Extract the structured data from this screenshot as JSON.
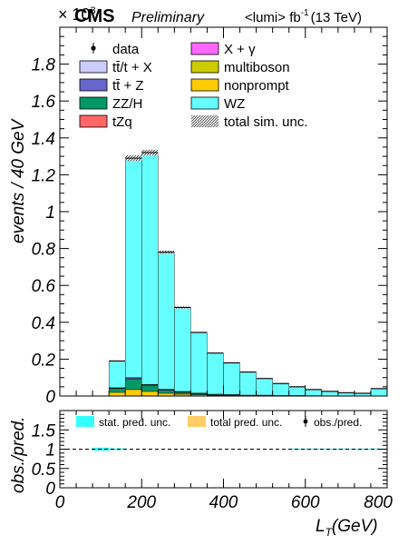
{
  "header": {
    "experiment": "CMS",
    "status": "Preliminary",
    "lumi_prefix": "<lumi> fb",
    "lumi_exp": "-1",
    "energy": "(13 TeV)",
    "multiplier": "× 10",
    "multiplier_exp": "3"
  },
  "chart_data": [
    {
      "type": "bar",
      "stacked": true,
      "xlabel": "L_T (GeV)",
      "xlabel_main": "L",
      "xlabel_sub": "T",
      "xlabel_unit": "(GeV)",
      "ylabel": "events / 40 GeV",
      "xlim": [
        0,
        800
      ],
      "ylim": [
        0,
        2.0
      ],
      "y_scale_factor": 1000,
      "x_ticks": [
        "0",
        "200",
        "400",
        "600",
        "800"
      ],
      "y_ticks": [
        "0",
        "0.2",
        "0.4",
        "0.6",
        "0.8",
        "1",
        "1.2",
        "1.4",
        "1.6",
        "1.8"
      ],
      "bin_edges": [
        120,
        160,
        200,
        240,
        280,
        320,
        360,
        400,
        440,
        480,
        520,
        560,
        600,
        640,
        680,
        720,
        760,
        800
      ],
      "legend": {
        "placement": "top",
        "entries": [
          {
            "label": "data",
            "style": "marker"
          },
          {
            "label": "X + γ",
            "color": "#ff66ff",
            "style": "box"
          },
          {
            "label": "tt̄/t + X",
            "color": "#ccccff",
            "style": "box"
          },
          {
            "label": "multiboson",
            "color": "#cccc00",
            "style": "box"
          },
          {
            "label": "tt̄ + Z",
            "color": "#6666cc",
            "style": "box"
          },
          {
            "label": "nonprompt",
            "color": "#ffcc00",
            "style": "box"
          },
          {
            "label": "ZZ/H",
            "color": "#009966",
            "style": "box"
          },
          {
            "label": "WZ",
            "color": "#66ffff",
            "style": "box"
          },
          {
            "label": "tZq",
            "color": "#ff6666",
            "style": "box"
          },
          {
            "label": "total sim. unc.",
            "color": "#555555",
            "style": "hatch"
          }
        ]
      },
      "series": [
        {
          "name": "nonprompt",
          "color": "#ffcc00",
          "values": [
            0.02,
            0.035,
            0.025,
            0.015,
            0.01,
            0.006,
            0.004,
            0.003,
            0.002,
            0.002,
            0.001,
            0.001,
            0.001,
            0.0,
            0.0,
            0.0,
            0.0
          ]
        },
        {
          "name": "ZZ/H",
          "color": "#009966",
          "values": [
            0.02,
            0.055,
            0.03,
            0.016,
            0.01,
            0.006,
            0.004,
            0.003,
            0.002,
            0.002,
            0.001,
            0.001,
            0.001,
            0.001,
            0.0,
            0.0,
            0.0
          ]
        },
        {
          "name": "tt̄ + Z",
          "color": "#6666cc",
          "values": [
            0.004,
            0.008,
            0.006,
            0.005,
            0.004,
            0.003,
            0.002,
            0.002,
            0.001,
            0.001,
            0.001,
            0.001,
            0.0,
            0.0,
            0.0,
            0.0,
            0.0
          ]
        },
        {
          "name": "tZq",
          "color": "#ff6666",
          "values": [
            0.001,
            0.002,
            0.002,
            0.001,
            0.001,
            0.001,
            0.0,
            0.0,
            0.0,
            0.0,
            0.0,
            0.0,
            0.0,
            0.0,
            0.0,
            0.0,
            0.0
          ]
        },
        {
          "name": "WZ",
          "color": "#66ffff",
          "values": [
            0.145,
            1.19,
            1.257,
            0.743,
            0.455,
            0.329,
            0.223,
            0.172,
            0.125,
            0.09,
            0.065,
            0.047,
            0.033,
            0.024,
            0.018,
            0.015,
            0.04
          ]
        }
      ],
      "totals": [
        0.19,
        1.29,
        1.32,
        0.78,
        0.48,
        0.345,
        0.233,
        0.18,
        0.13,
        0.095,
        0.068,
        0.05,
        0.035,
        0.025,
        0.018,
        0.015,
        0.04
      ]
    },
    {
      "type": "line",
      "ylabel": "obs./pred.",
      "xlim": [
        0,
        800
      ],
      "ylim": [
        0,
        2.0
      ],
      "x_ticks": [
        "0",
        "200",
        "400",
        "600",
        "800"
      ],
      "y_ticks": [
        "0",
        "0.5",
        "1",
        "1.5"
      ],
      "reference_line": 1,
      "legend": {
        "placement": "top",
        "entries": [
          {
            "label": "stat. pred. unc.",
            "color": "#33ffff",
            "style": "box"
          },
          {
            "label": "total pred. unc.",
            "color": "#ffcc66",
            "style": "box"
          },
          {
            "label": "obs./pred.",
            "style": "marker"
          }
        ]
      },
      "stat_unc_bands": [
        {
          "x": [
            80,
            120
          ],
          "y": [
            0.96,
            1.04
          ]
        },
        {
          "x": [
            120,
            160
          ],
          "y": [
            0.98,
            1.02
          ]
        },
        {
          "x": [
            560,
            800
          ],
          "y": [
            0.985,
            1.015
          ]
        }
      ]
    }
  ]
}
